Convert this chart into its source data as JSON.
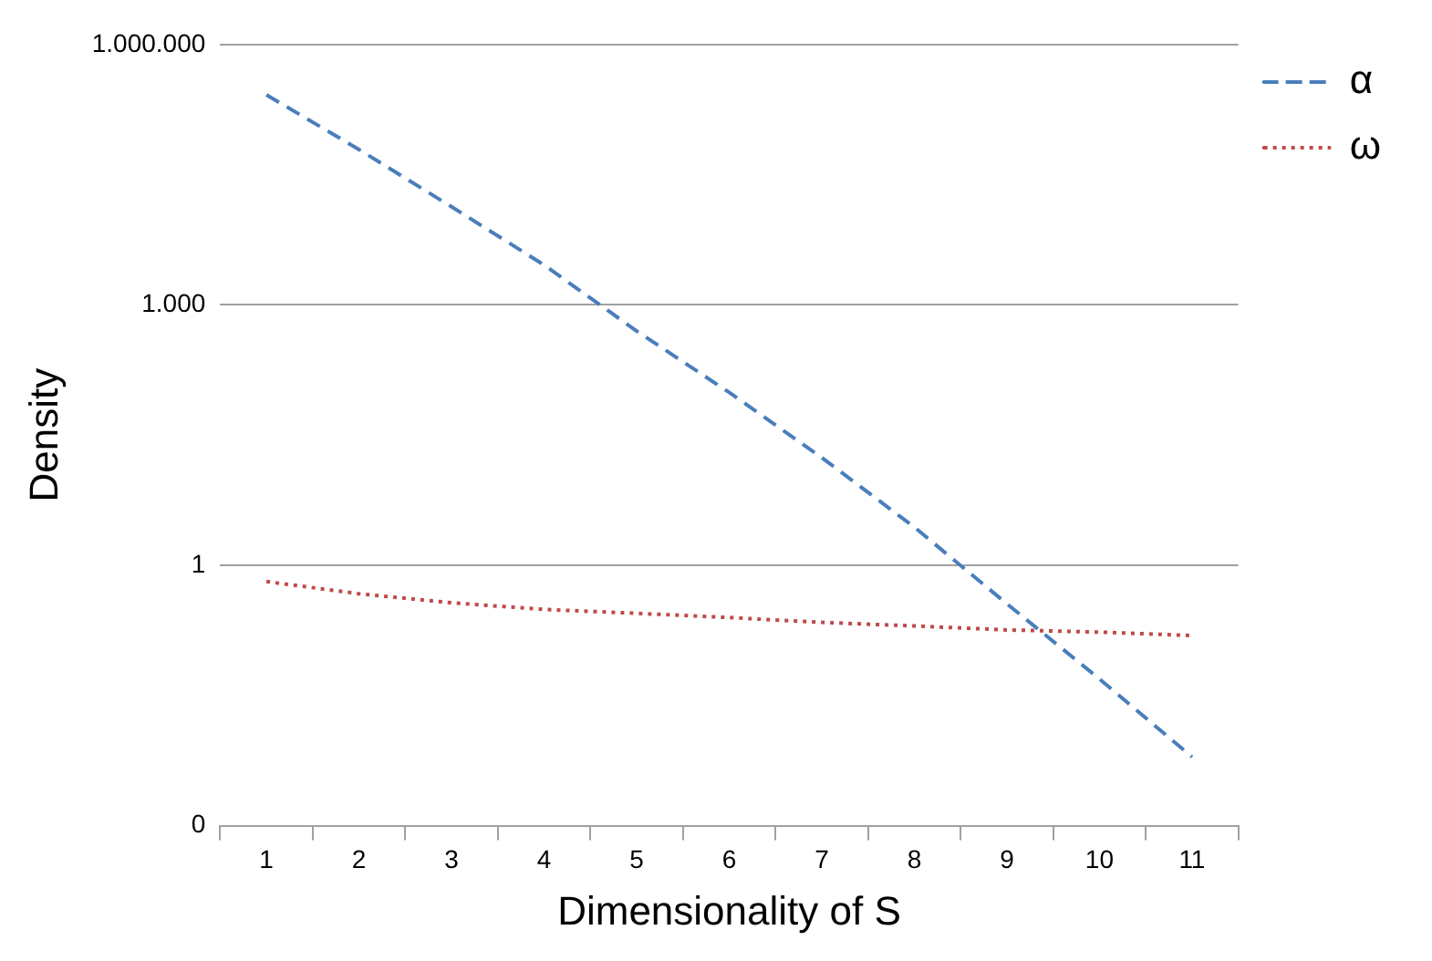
{
  "chart_data": {
    "type": "line",
    "xlabel": "Dimensionality of S",
    "ylabel": "Density",
    "categories": [
      "1",
      "2",
      "3",
      "4",
      "5",
      "6",
      "7",
      "8",
      "9",
      "10",
      "11"
    ],
    "series": [
      {
        "name": "α",
        "color": "#4a7ebb",
        "line_style": "dashed",
        "values": [
          263000,
          61700,
          13500,
          2880,
          500,
          98,
          17.4,
          2.75,
          0.36,
          0.049,
          0.0062
        ]
      },
      {
        "name": "ω",
        "color": "#be4b48",
        "line_style": "dotted",
        "values": [
          0.65,
          0.47,
          0.37,
          0.31,
          0.28,
          0.25,
          0.22,
          0.2,
          0.18,
          0.17,
          0.155
        ]
      }
    ],
    "log": "y",
    "ylim": [
      0.001,
      1000000
    ],
    "yticks": [
      {
        "value": 0.001,
        "label": "0"
      },
      1,
      {
        "value": 1000,
        "label": "1.000"
      },
      {
        "value": 1000000,
        "label": "1.000.000"
      }
    ],
    "grid": "y",
    "legend": "right",
    "marker": "none"
  }
}
